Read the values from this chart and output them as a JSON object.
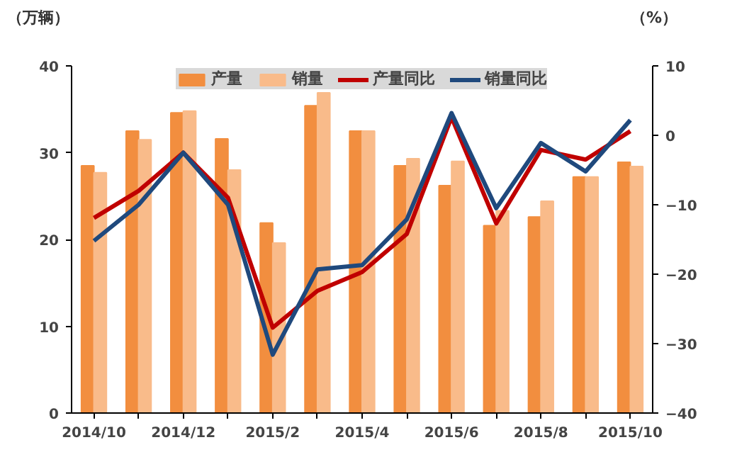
{
  "chart_data": {
    "type": "bar",
    "ylabel": "（万辆）",
    "y2label": "（%）",
    "categories": [
      "2014/10",
      null,
      "2014/12",
      null,
      "2015/2",
      null,
      "2015/4",
      null,
      "2015/6",
      null,
      "2015/8",
      null,
      "2015/10"
    ],
    "ylim": [
      0,
      40
    ],
    "yticks": [
      0,
      10,
      20,
      30,
      40
    ],
    "y2lim": [
      -40,
      10
    ],
    "y2ticks": [
      -40,
      -30,
      -20,
      -10,
      0,
      10
    ],
    "legend": "top",
    "grid": false,
    "series": [
      {
        "name": "产量",
        "color": "#f28e3f",
        "values": [
          28.5,
          32.5,
          34.6,
          31.6,
          21.9,
          35.4,
          32.5,
          28.5,
          26.2,
          21.6,
          22.6,
          27.2,
          28.9
        ]
      },
      {
        "name": "销量",
        "color": "#f9bb8a",
        "values": [
          27.7,
          31.5,
          34.8,
          28.0,
          19.6,
          36.9,
          32.5,
          29.3,
          29.0,
          23.3,
          24.4,
          27.2,
          28.4
        ]
      },
      {
        "name": "产量同比",
        "type": "line",
        "axis": "y2",
        "color": "#c00000",
        "values": [
          -11.9,
          -8.0,
          -2.5,
          -9.0,
          -27.7,
          -22.4,
          -19.7,
          -14.2,
          2.6,
          -12.7,
          -2.1,
          -3.5,
          0.6
        ]
      },
      {
        "name": "销量同比",
        "type": "line",
        "axis": "y2",
        "color": "#1f497d",
        "values": [
          -15.2,
          -10.0,
          -2.5,
          -10.0,
          -31.6,
          -19.3,
          -18.7,
          -12.1,
          3.2,
          -10.5,
          -1.1,
          -5.2,
          2.2
        ]
      }
    ]
  }
}
